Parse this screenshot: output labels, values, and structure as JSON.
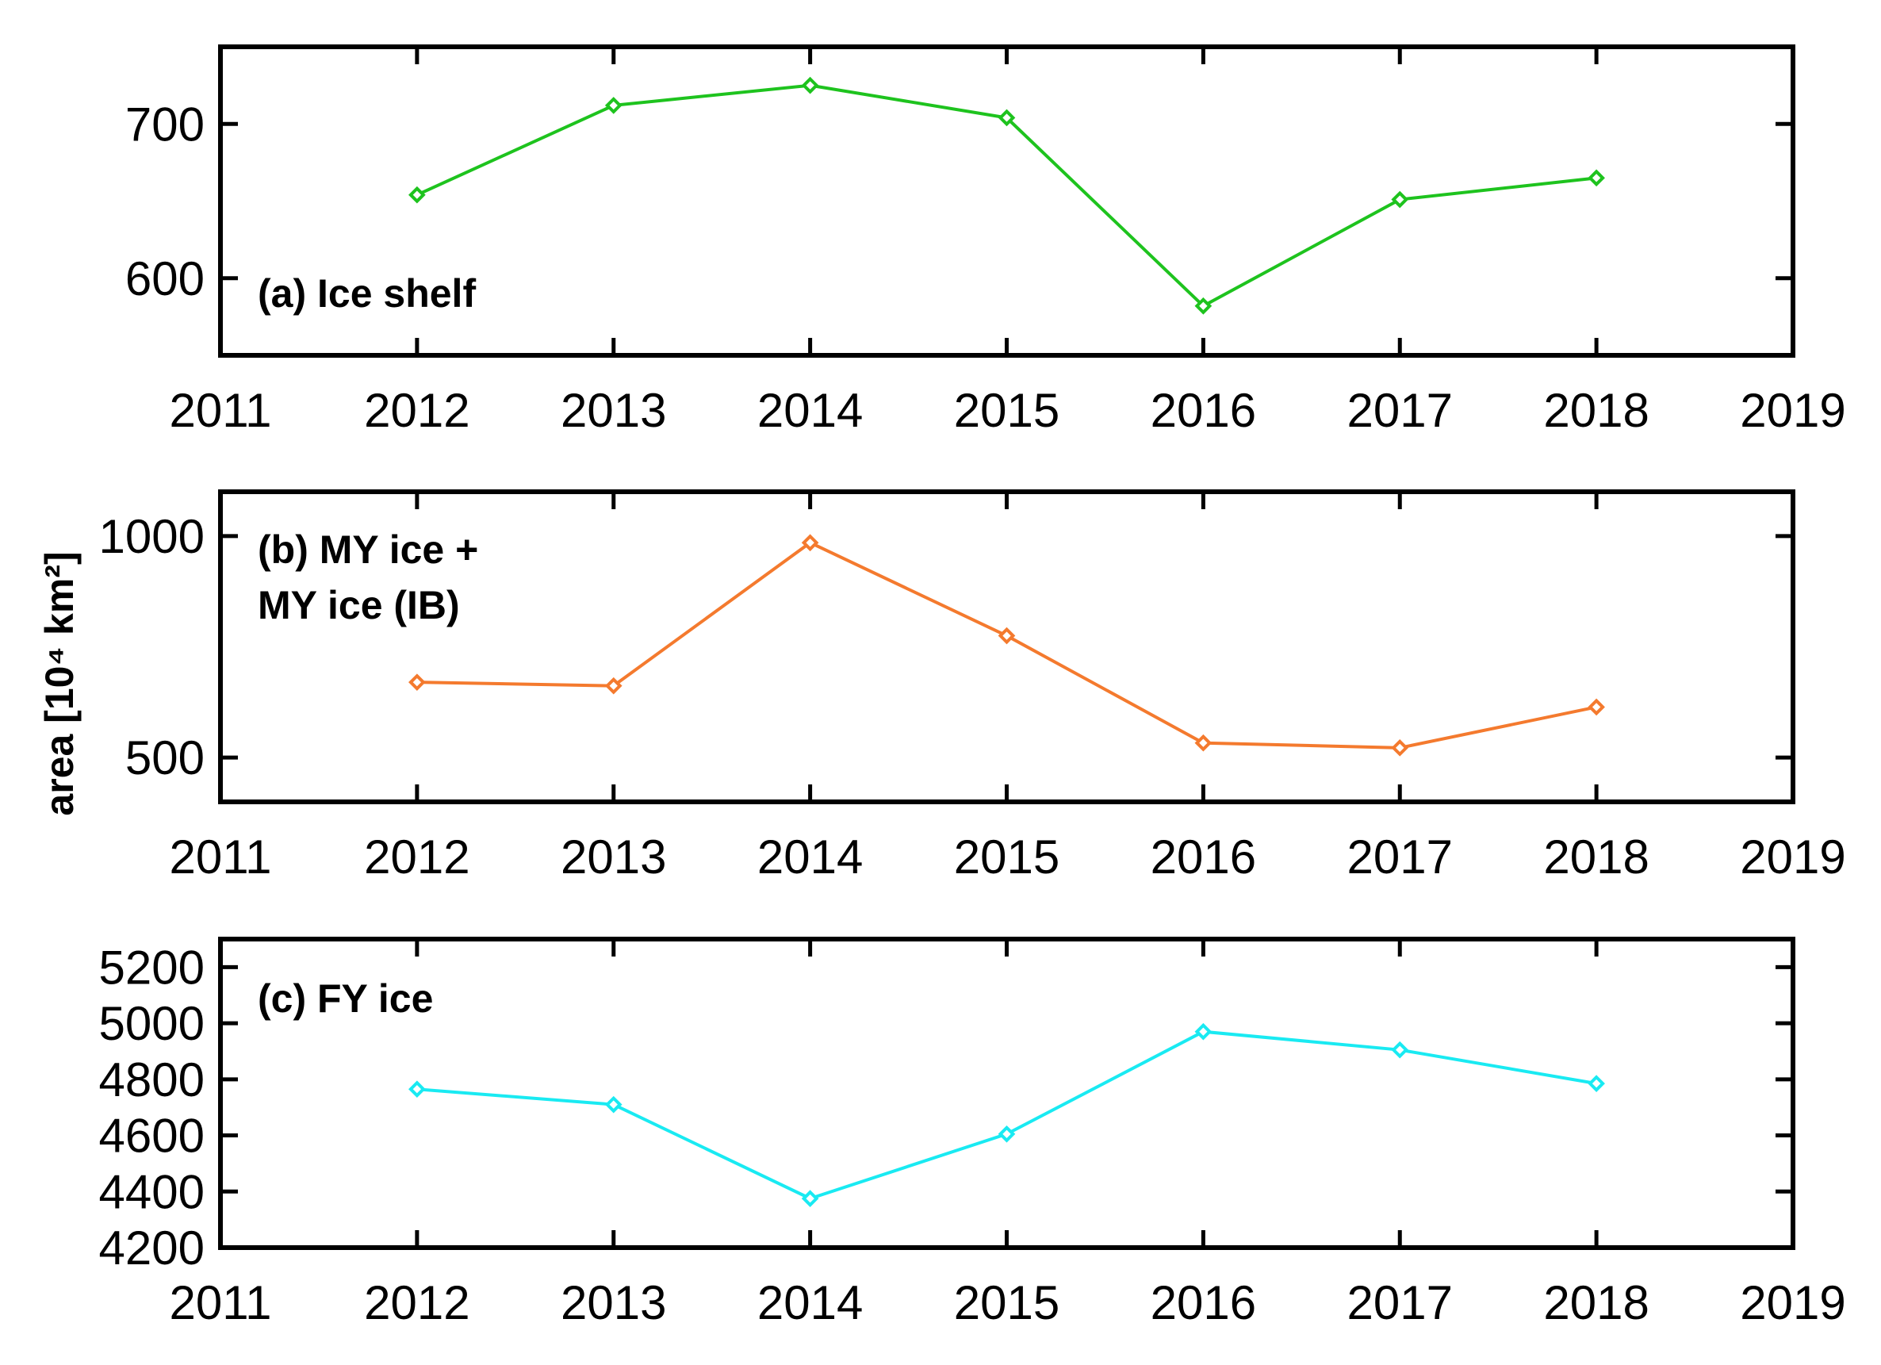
{
  "figure": {
    "ylabel": "area [10⁴ km²]"
  },
  "chart_data": [
    {
      "type": "line",
      "label_lines": [
        "(a) Ice shelf"
      ],
      "x": [
        2012,
        2013,
        2014,
        2015,
        2016,
        2017,
        2018
      ],
      "series": [
        {
          "name": "Ice shelf",
          "color": "#1ec31e",
          "values": [
            654,
            712,
            725,
            704,
            582,
            651,
            665
          ]
        }
      ],
      "xlim": [
        2011,
        2019
      ],
      "xticks": [
        2011,
        2012,
        2013,
        2014,
        2015,
        2016,
        2017,
        2018,
        2019
      ],
      "ylim": [
        550,
        750
      ],
      "yticks": [
        600,
        700
      ],
      "ytick_labels": [
        "600",
        "700"
      ],
      "xtick_labels": [
        "2011",
        "2012",
        "2013",
        "2014",
        "2015",
        "2016",
        "2017",
        "2018",
        "2019"
      ]
    },
    {
      "type": "line",
      "label_lines": [
        "(b) MY ice +",
        "MY ice (IB)"
      ],
      "x": [
        2012,
        2013,
        2014,
        2015,
        2016,
        2017,
        2018
      ],
      "series": [
        {
          "name": "MY ice + MY ice (IB)",
          "color": "#f47a2e",
          "values": [
            670,
            662,
            985,
            775,
            533,
            522,
            614
          ]
        }
      ],
      "xlim": [
        2011,
        2019
      ],
      "xticks": [
        2011,
        2012,
        2013,
        2014,
        2015,
        2016,
        2017,
        2018,
        2019
      ],
      "ylim": [
        400,
        1100
      ],
      "yticks": [
        500,
        1000
      ],
      "ytick_labels": [
        "500",
        "1000"
      ],
      "xtick_labels": [
        "2011",
        "2012",
        "2013",
        "2014",
        "2015",
        "2016",
        "2017",
        "2018",
        "2019"
      ]
    },
    {
      "type": "line",
      "label_lines": [
        "(c) FY ice"
      ],
      "x": [
        2012,
        2013,
        2014,
        2015,
        2016,
        2017,
        2018
      ],
      "series": [
        {
          "name": "FY ice",
          "color": "#19eaf2",
          "values": [
            4765,
            4710,
            4375,
            4605,
            4970,
            4905,
            4785
          ]
        }
      ],
      "xlim": [
        2011,
        2019
      ],
      "xticks": [
        2011,
        2012,
        2013,
        2014,
        2015,
        2016,
        2017,
        2018,
        2019
      ],
      "ylim": [
        4200,
        5300
      ],
      "yticks": [
        4200,
        4400,
        4600,
        4800,
        5000,
        5200
      ],
      "ytick_labels": [
        "4200",
        "4400",
        "4600",
        "4800",
        "5000",
        "5200"
      ],
      "xtick_labels": [
        "2011",
        "2012",
        "2013",
        "2014",
        "2015",
        "2016",
        "2017",
        "2018",
        "2019"
      ]
    }
  ]
}
